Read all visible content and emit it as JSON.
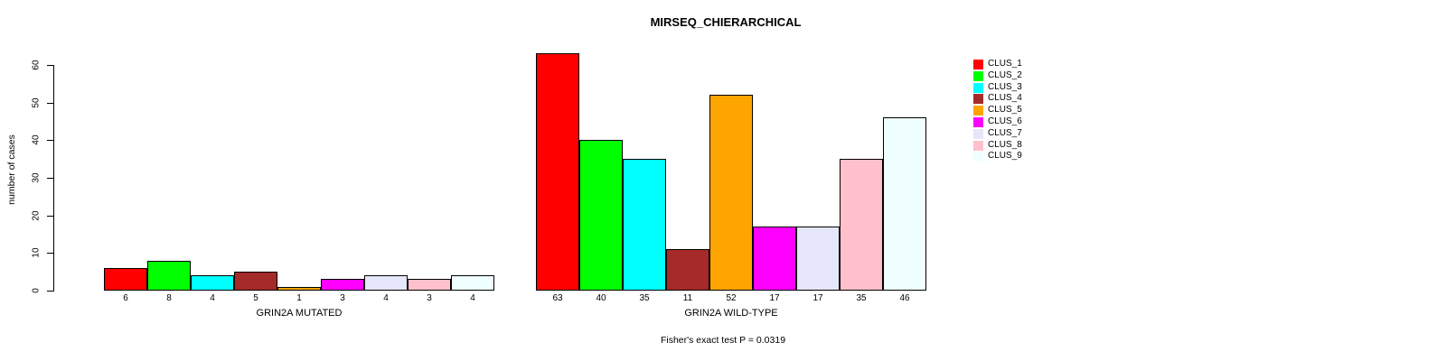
{
  "chart_data": {
    "type": "bar",
    "title": "MIRSEQ_CHIERARCHICAL",
    "ylabel": "number of cases",
    "ylim": [
      0,
      60
    ],
    "yticks": [
      "0",
      "10",
      "20",
      "30",
      "40",
      "50",
      "60"
    ],
    "ytick_values": [
      0,
      10,
      20,
      30,
      40,
      50,
      60
    ],
    "grid": false,
    "legend_position": "top-right",
    "bar_border_color": "#000000",
    "clusters": [
      {
        "name": "CLUS_1",
        "color": "#FF0000"
      },
      {
        "name": "CLUS_2",
        "color": "#00FF00"
      },
      {
        "name": "CLUS_3",
        "color": "#00FFFF"
      },
      {
        "name": "CLUS_4",
        "color": "#A52A2A"
      },
      {
        "name": "CLUS_5",
        "color": "#FFA500"
      },
      {
        "name": "CLUS_6",
        "color": "#FF00FF"
      },
      {
        "name": "CLUS_7",
        "color": "#E6E6FA"
      },
      {
        "name": "CLUS_8",
        "color": "#FFC0CB"
      },
      {
        "name": "CLUS_9",
        "color": "#F0FFFF"
      }
    ],
    "groups": [
      {
        "label": "GRIN2A MUTATED",
        "values": [
          6,
          8,
          4,
          5,
          1,
          3,
          4,
          3,
          4
        ],
        "value_labels": [
          "6",
          "8",
          "4",
          "5",
          "1",
          "3",
          "4",
          "3",
          "4"
        ]
      },
      {
        "label": "GRIN2A WILD-TYPE",
        "values": [
          63,
          40,
          35,
          11,
          52,
          17,
          17,
          35,
          46
        ],
        "value_labels": [
          "63",
          "40",
          "35",
          "11",
          "52",
          "17",
          "17",
          "35",
          "46"
        ]
      }
    ],
    "annotation": "Fisher's exact test P = 0.0319"
  }
}
